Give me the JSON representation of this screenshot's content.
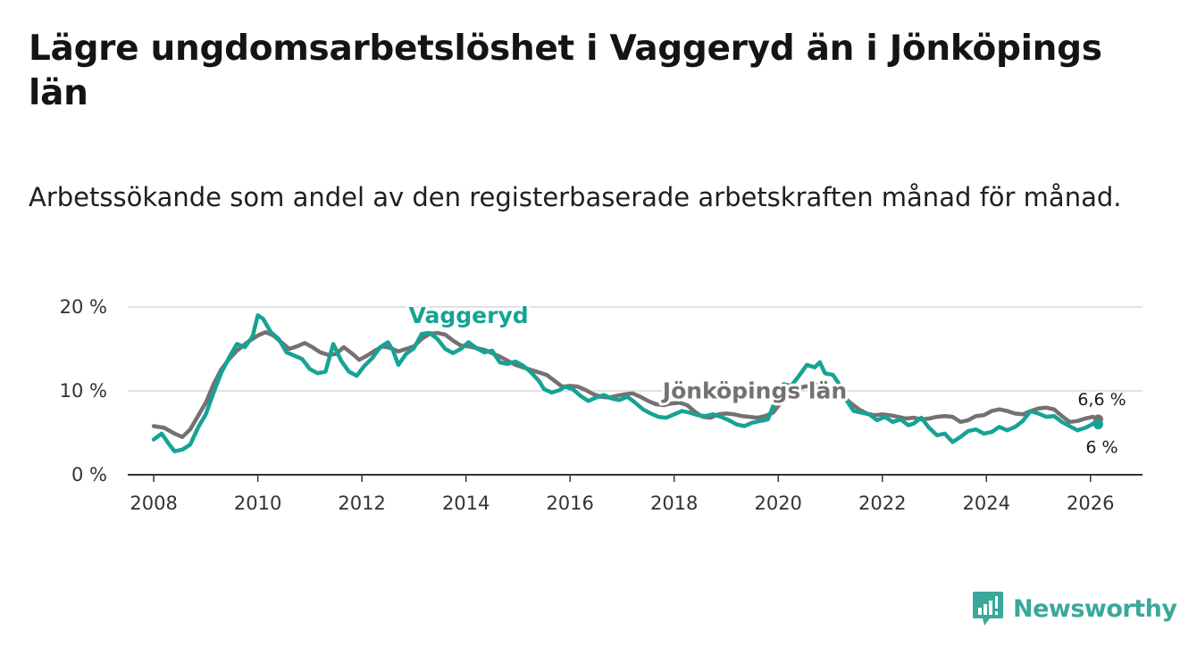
{
  "title": "Lägre ungdomsarbetslöshet i Vaggeryd än i Jönköpings län",
  "subtitle": "Arbetssökande som andel av den registerbaserade arbetskraften månad för månad.",
  "brand": {
    "name": "Newsworthy",
    "icon": "newsworthy-logo-icon",
    "color": "#3aa89a"
  },
  "chart_data": {
    "type": "line",
    "title": "Lägre ungdomsarbetslöshet i Vaggeryd än i Jönköpings län",
    "xlabel": "",
    "ylabel": "",
    "xlim": [
      2007.5,
      2027.0
    ],
    "ylim": [
      0,
      20
    ],
    "grid": true,
    "x_ticks": [
      2008,
      2010,
      2012,
      2014,
      2016,
      2018,
      2020,
      2022,
      2024,
      2026
    ],
    "x_tick_labels": [
      "2008",
      "2010",
      "2012",
      "2014",
      "2016",
      "2018",
      "2020",
      "2022",
      "2024",
      "2026"
    ],
    "y_ticks": [
      0,
      10,
      20
    ],
    "y_tick_labels": [
      "0 %",
      "10 %",
      "20 %"
    ],
    "series": [
      {
        "name": "Jönköpings län",
        "color": "#767171",
        "end_label": "6,6 %",
        "points": [
          [
            2008.0,
            5.8
          ],
          [
            2008.2,
            5.6
          ],
          [
            2008.4,
            4.9
          ],
          [
            2008.55,
            4.5
          ],
          [
            2008.7,
            5.4
          ],
          [
            2008.85,
            7.0
          ],
          [
            2009.0,
            8.6
          ],
          [
            2009.15,
            10.8
          ],
          [
            2009.3,
            12.6
          ],
          [
            2009.45,
            13.8
          ],
          [
            2009.6,
            14.8
          ],
          [
            2009.8,
            15.8
          ],
          [
            2010.0,
            16.6
          ],
          [
            2010.15,
            17.0
          ],
          [
            2010.3,
            16.6
          ],
          [
            2010.45,
            15.8
          ],
          [
            2010.6,
            15.0
          ],
          [
            2010.75,
            15.3
          ],
          [
            2010.9,
            15.7
          ],
          [
            2011.05,
            15.2
          ],
          [
            2011.2,
            14.6
          ],
          [
            2011.35,
            14.3
          ],
          [
            2011.5,
            14.4
          ],
          [
            2011.65,
            15.2
          ],
          [
            2011.8,
            14.5
          ],
          [
            2011.95,
            13.7
          ],
          [
            2012.1,
            14.2
          ],
          [
            2012.25,
            14.8
          ],
          [
            2012.4,
            15.3
          ],
          [
            2012.55,
            15.1
          ],
          [
            2012.7,
            14.7
          ],
          [
            2012.85,
            15.0
          ],
          [
            2013.0,
            15.3
          ],
          [
            2013.15,
            16.2
          ],
          [
            2013.3,
            16.8
          ],
          [
            2013.45,
            16.9
          ],
          [
            2013.6,
            16.7
          ],
          [
            2013.75,
            16.0
          ],
          [
            2013.9,
            15.4
          ],
          [
            2014.05,
            15.3
          ],
          [
            2014.2,
            15.1
          ],
          [
            2014.35,
            14.9
          ],
          [
            2014.5,
            14.5
          ],
          [
            2014.65,
            14.1
          ],
          [
            2014.8,
            13.6
          ],
          [
            2014.95,
            13.1
          ],
          [
            2015.1,
            12.8
          ],
          [
            2015.25,
            12.5
          ],
          [
            2015.4,
            12.2
          ],
          [
            2015.55,
            11.9
          ],
          [
            2015.7,
            11.2
          ],
          [
            2015.85,
            10.5
          ],
          [
            2016.0,
            10.6
          ],
          [
            2016.15,
            10.5
          ],
          [
            2016.3,
            10.1
          ],
          [
            2016.45,
            9.6
          ],
          [
            2016.6,
            9.3
          ],
          [
            2016.75,
            9.2
          ],
          [
            2016.9,
            9.4
          ],
          [
            2017.05,
            9.6
          ],
          [
            2017.2,
            9.7
          ],
          [
            2017.35,
            9.3
          ],
          [
            2017.5,
            8.8
          ],
          [
            2017.65,
            8.4
          ],
          [
            2017.8,
            8.3
          ],
          [
            2017.95,
            8.5
          ],
          [
            2018.1,
            8.6
          ],
          [
            2018.25,
            8.3
          ],
          [
            2018.4,
            7.5
          ],
          [
            2018.55,
            6.9
          ],
          [
            2018.7,
            6.8
          ],
          [
            2018.85,
            7.2
          ],
          [
            2019.0,
            7.3
          ],
          [
            2019.15,
            7.2
          ],
          [
            2019.3,
            7.0
          ],
          [
            2019.45,
            6.9
          ],
          [
            2019.6,
            6.8
          ],
          [
            2019.75,
            7.0
          ],
          [
            2019.9,
            7.4
          ],
          [
            2020.05,
            8.6
          ],
          [
            2020.2,
            9.6
          ],
          [
            2020.35,
            10.2
          ],
          [
            2020.5,
            10.5
          ],
          [
            2020.65,
            10.6
          ],
          [
            2020.8,
            10.8
          ],
          [
            2020.95,
            10.5
          ],
          [
            2021.1,
            10.0
          ],
          [
            2021.25,
            9.3
          ],
          [
            2021.4,
            8.5
          ],
          [
            2021.55,
            7.8
          ],
          [
            2021.7,
            7.3
          ],
          [
            2021.85,
            7.1
          ],
          [
            2022.0,
            7.2
          ],
          [
            2022.15,
            7.1
          ],
          [
            2022.3,
            6.9
          ],
          [
            2022.45,
            6.7
          ],
          [
            2022.6,
            6.8
          ],
          [
            2022.75,
            6.6
          ],
          [
            2022.9,
            6.7
          ],
          [
            2023.05,
            6.9
          ],
          [
            2023.2,
            7.0
          ],
          [
            2023.35,
            6.9
          ],
          [
            2023.5,
            6.3
          ],
          [
            2023.65,
            6.5
          ],
          [
            2023.8,
            7.0
          ],
          [
            2023.95,
            7.1
          ],
          [
            2024.1,
            7.6
          ],
          [
            2024.25,
            7.8
          ],
          [
            2024.4,
            7.6
          ],
          [
            2024.55,
            7.3
          ],
          [
            2024.7,
            7.2
          ],
          [
            2024.85,
            7.6
          ],
          [
            2025.0,
            7.9
          ],
          [
            2025.15,
            8.0
          ],
          [
            2025.3,
            7.8
          ],
          [
            2025.45,
            7.0
          ],
          [
            2025.6,
            6.3
          ],
          [
            2025.75,
            6.4
          ],
          [
            2025.9,
            6.7
          ],
          [
            2026.05,
            6.9
          ],
          [
            2026.15,
            6.6
          ]
        ]
      },
      {
        "name": "Vaggeryd",
        "color": "#16a394",
        "end_label": "6 %",
        "points": [
          [
            2008.0,
            4.2
          ],
          [
            2008.15,
            4.9
          ],
          [
            2008.3,
            3.6
          ],
          [
            2008.4,
            2.8
          ],
          [
            2008.55,
            3.0
          ],
          [
            2008.7,
            3.6
          ],
          [
            2008.85,
            5.6
          ],
          [
            2009.0,
            7.2
          ],
          [
            2009.15,
            9.8
          ],
          [
            2009.3,
            12.2
          ],
          [
            2009.45,
            14.0
          ],
          [
            2009.6,
            15.6
          ],
          [
            2009.75,
            15.2
          ],
          [
            2009.9,
            16.5
          ],
          [
            2010.0,
            19.0
          ],
          [
            2010.1,
            18.6
          ],
          [
            2010.25,
            17.0
          ],
          [
            2010.4,
            16.2
          ],
          [
            2010.55,
            14.6
          ],
          [
            2010.7,
            14.2
          ],
          [
            2010.85,
            13.8
          ],
          [
            2011.0,
            12.6
          ],
          [
            2011.15,
            12.1
          ],
          [
            2011.3,
            12.3
          ],
          [
            2011.45,
            15.6
          ],
          [
            2011.6,
            13.6
          ],
          [
            2011.75,
            12.3
          ],
          [
            2011.9,
            11.8
          ],
          [
            2012.05,
            13.0
          ],
          [
            2012.2,
            13.9
          ],
          [
            2012.35,
            15.2
          ],
          [
            2012.5,
            15.8
          ],
          [
            2012.6,
            14.8
          ],
          [
            2012.7,
            13.1
          ],
          [
            2012.85,
            14.4
          ],
          [
            2013.0,
            15.1
          ],
          [
            2013.15,
            16.8
          ],
          [
            2013.3,
            16.9
          ],
          [
            2013.45,
            16.2
          ],
          [
            2013.6,
            15.0
          ],
          [
            2013.75,
            14.5
          ],
          [
            2013.9,
            15.0
          ],
          [
            2014.05,
            15.8
          ],
          [
            2014.2,
            15.1
          ],
          [
            2014.35,
            14.6
          ],
          [
            2014.5,
            14.8
          ],
          [
            2014.65,
            13.4
          ],
          [
            2014.8,
            13.2
          ],
          [
            2014.95,
            13.5
          ],
          [
            2015.1,
            13.0
          ],
          [
            2015.25,
            12.2
          ],
          [
            2015.4,
            11.2
          ],
          [
            2015.5,
            10.2
          ],
          [
            2015.65,
            9.8
          ],
          [
            2015.8,
            10.1
          ],
          [
            2015.9,
            10.5
          ],
          [
            2016.05,
            10.2
          ],
          [
            2016.2,
            9.4
          ],
          [
            2016.35,
            8.8
          ],
          [
            2016.5,
            9.2
          ],
          [
            2016.65,
            9.5
          ],
          [
            2016.8,
            9.1
          ],
          [
            2016.95,
            8.9
          ],
          [
            2017.1,
            9.3
          ],
          [
            2017.25,
            8.6
          ],
          [
            2017.4,
            7.8
          ],
          [
            2017.55,
            7.3
          ],
          [
            2017.7,
            6.9
          ],
          [
            2017.85,
            6.8
          ],
          [
            2018.0,
            7.2
          ],
          [
            2018.15,
            7.6
          ],
          [
            2018.3,
            7.4
          ],
          [
            2018.45,
            7.1
          ],
          [
            2018.6,
            7.0
          ],
          [
            2018.75,
            7.2
          ],
          [
            2018.9,
            6.9
          ],
          [
            2019.05,
            6.5
          ],
          [
            2019.2,
            6.0
          ],
          [
            2019.35,
            5.8
          ],
          [
            2019.5,
            6.2
          ],
          [
            2019.65,
            6.4
          ],
          [
            2019.8,
            6.6
          ],
          [
            2019.95,
            8.9
          ],
          [
            2020.1,
            10.8
          ],
          [
            2020.25,
            10.6
          ],
          [
            2020.4,
            11.8
          ],
          [
            2020.55,
            13.1
          ],
          [
            2020.7,
            12.8
          ],
          [
            2020.8,
            13.4
          ],
          [
            2020.9,
            12.1
          ],
          [
            2021.05,
            11.9
          ],
          [
            2021.15,
            11.0
          ],
          [
            2021.3,
            9.0
          ],
          [
            2021.45,
            7.6
          ],
          [
            2021.6,
            7.4
          ],
          [
            2021.75,
            7.2
          ],
          [
            2021.9,
            6.5
          ],
          [
            2022.05,
            6.9
          ],
          [
            2022.2,
            6.3
          ],
          [
            2022.35,
            6.6
          ],
          [
            2022.5,
            5.9
          ],
          [
            2022.6,
            6.1
          ],
          [
            2022.75,
            6.8
          ],
          [
            2022.9,
            5.6
          ],
          [
            2023.05,
            4.7
          ],
          [
            2023.2,
            4.9
          ],
          [
            2023.35,
            3.9
          ],
          [
            2023.5,
            4.5
          ],
          [
            2023.65,
            5.2
          ],
          [
            2023.8,
            5.4
          ],
          [
            2023.95,
            4.9
          ],
          [
            2024.1,
            5.1
          ],
          [
            2024.25,
            5.7
          ],
          [
            2024.4,
            5.3
          ],
          [
            2024.55,
            5.7
          ],
          [
            2024.7,
            6.4
          ],
          [
            2024.85,
            7.6
          ],
          [
            2025.0,
            7.3
          ],
          [
            2025.15,
            6.9
          ],
          [
            2025.3,
            7.0
          ],
          [
            2025.45,
            6.3
          ],
          [
            2025.6,
            5.8
          ],
          [
            2025.75,
            5.3
          ],
          [
            2025.9,
            5.6
          ],
          [
            2026.0,
            5.9
          ],
          [
            2026.1,
            6.3
          ],
          [
            2026.15,
            6.0
          ]
        ]
      }
    ],
    "annotations": [
      {
        "text": "Vaggeryd",
        "series": "Vaggeryd",
        "at": [
          2014.05,
          18.1
        ]
      },
      {
        "text": "Jönköpings län",
        "series": "Jönköpings län",
        "at": [
          2019.55,
          9.1
        ]
      }
    ]
  }
}
